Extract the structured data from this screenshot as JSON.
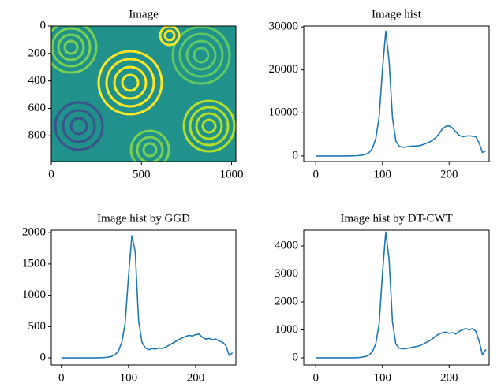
{
  "chart_data": [
    {
      "type": "image",
      "title": "Image",
      "xlim": [
        0,
        1024
      ],
      "ylim": [
        988,
        0
      ],
      "xticks": [
        0,
        500,
        1000
      ],
      "yticks": [
        0,
        200,
        400,
        600,
        800
      ]
    },
    {
      "type": "line",
      "title": "Image hist",
      "color": "#1f77b4",
      "x": [
        0,
        5,
        10,
        15,
        20,
        25,
        30,
        35,
        40,
        45,
        50,
        55,
        60,
        65,
        70,
        75,
        80,
        85,
        90,
        95,
        100,
        105,
        110,
        115,
        120,
        125,
        130,
        135,
        140,
        145,
        150,
        155,
        160,
        165,
        170,
        175,
        180,
        185,
        190,
        195,
        200,
        205,
        210,
        215,
        220,
        225,
        230,
        235,
        240,
        245,
        250,
        255
      ],
      "values": [
        0,
        0,
        0,
        0,
        0,
        0,
        0,
        0,
        0,
        0,
        10,
        20,
        50,
        100,
        200,
        400,
        800,
        1800,
        4000,
        9000,
        20000,
        29000,
        22000,
        9000,
        3500,
        2300,
        2000,
        2100,
        2200,
        2300,
        2300,
        2400,
        2600,
        2900,
        3200,
        3600,
        4300,
        5200,
        6300,
        6900,
        7000,
        6500,
        5600,
        4800,
        4500,
        4600,
        4700,
        4600,
        4500,
        3000,
        800,
        1200
      ],
      "xlim": [
        -18,
        260
      ],
      "ylim": [
        -1300,
        30200
      ],
      "xticks": [
        0,
        100,
        200
      ],
      "yticks": [
        0,
        10000,
        20000,
        30000
      ]
    },
    {
      "type": "line",
      "title": "Image hist by GGD",
      "color": "#1f77b4",
      "x": [
        0,
        5,
        10,
        15,
        20,
        25,
        30,
        35,
        40,
        45,
        50,
        55,
        60,
        65,
        70,
        75,
        80,
        85,
        90,
        95,
        100,
        105,
        110,
        115,
        120,
        125,
        130,
        135,
        140,
        145,
        150,
        155,
        160,
        165,
        170,
        175,
        180,
        185,
        190,
        195,
        200,
        205,
        210,
        215,
        220,
        225,
        230,
        235,
        240,
        245,
        250,
        255
      ],
      "values": [
        0,
        0,
        0,
        0,
        0,
        0,
        0,
        0,
        0,
        0,
        0,
        1,
        3,
        6,
        12,
        25,
        50,
        110,
        250,
        550,
        1300,
        1950,
        1700,
        600,
        250,
        160,
        130,
        150,
        140,
        160,
        150,
        170,
        200,
        230,
        260,
        290,
        320,
        340,
        360,
        350,
        370,
        380,
        330,
        300,
        310,
        290,
        300,
        270,
        250,
        200,
        40,
        80
      ],
      "xlim": [
        -15,
        260
      ],
      "ylim": [
        -113,
        2040
      ],
      "xticks": [
        0,
        100,
        200
      ],
      "yticks": [
        0,
        500,
        1000,
        1500,
        2000
      ]
    },
    {
      "type": "line",
      "title": "Image hist by DT-CWT",
      "color": "#1f77b4",
      "x": [
        0,
        5,
        10,
        15,
        20,
        25,
        30,
        35,
        40,
        45,
        50,
        55,
        60,
        65,
        70,
        75,
        80,
        85,
        90,
        95,
        100,
        105,
        110,
        115,
        120,
        125,
        130,
        135,
        140,
        145,
        150,
        155,
        160,
        165,
        170,
        175,
        180,
        185,
        190,
        195,
        200,
        205,
        210,
        215,
        220,
        225,
        230,
        235,
        240,
        245,
        250,
        255
      ],
      "values": [
        0,
        0,
        0,
        0,
        0,
        0,
        0,
        0,
        0,
        0,
        0,
        2,
        6,
        12,
        25,
        50,
        100,
        220,
        500,
        1200,
        3000,
        4500,
        3500,
        1300,
        500,
        350,
        320,
        330,
        350,
        380,
        400,
        430,
        480,
        540,
        600,
        680,
        780,
        860,
        900,
        920,
        880,
        900,
        850,
        950,
        1000,
        1050,
        1000,
        1050,
        950,
        600,
        100,
        300
      ],
      "xlim": [
        -18,
        260
      ],
      "ylim": [
        -254,
        4563
      ],
      "xticks": [
        0,
        100,
        200
      ],
      "yticks": [
        0,
        1000,
        2000,
        3000,
        4000
      ]
    }
  ]
}
